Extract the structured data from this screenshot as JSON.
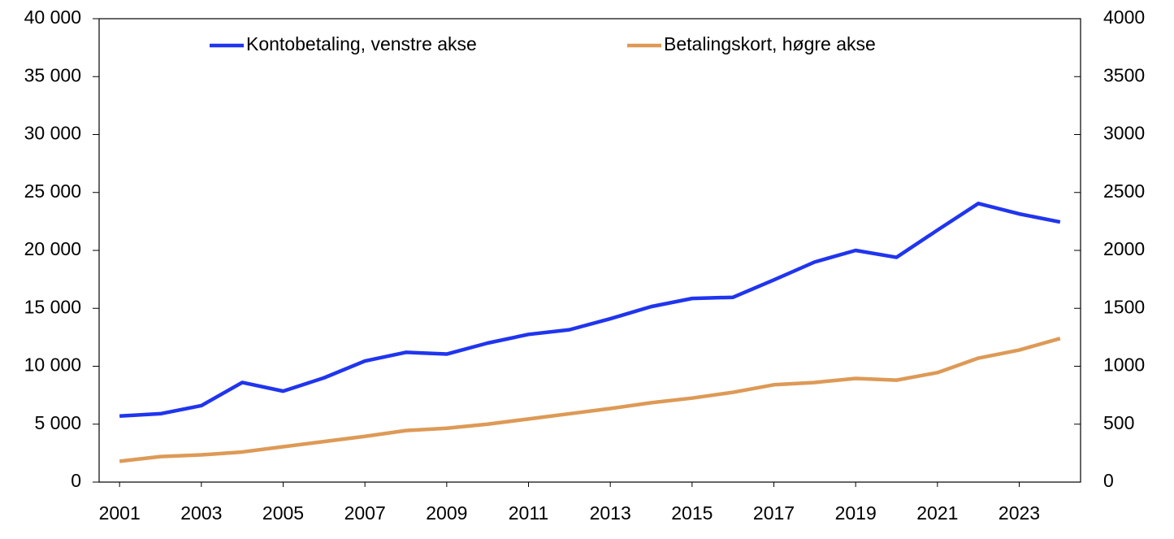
{
  "chart_data": {
    "type": "line",
    "x": [
      2001,
      2002,
      2003,
      2004,
      2005,
      2006,
      2007,
      2008,
      2009,
      2010,
      2011,
      2012,
      2013,
      2014,
      2015,
      2016,
      2017,
      2018,
      2019,
      2020,
      2021,
      2022,
      2023,
      2024
    ],
    "xlim": [
      2000.5,
      2024.5
    ],
    "xticks": [
      2001,
      2003,
      2005,
      2007,
      2009,
      2011,
      2013,
      2015,
      2017,
      2019,
      2021,
      2023
    ],
    "ylim": [
      0,
      40000
    ],
    "yticks": [
      0,
      {
        "value": 5000,
        "label": "5 000"
      },
      {
        "value": 10000,
        "label": "10 000"
      },
      {
        "value": 15000,
        "label": "15 000"
      },
      {
        "value": 20000,
        "label": "20 000"
      },
      {
        "value": 25000,
        "label": "25 000"
      },
      {
        "value": 30000,
        "label": "30 000"
      },
      {
        "value": 35000,
        "label": "35 000"
      },
      {
        "value": 40000,
        "label": "40 000"
      }
    ],
    "y2lim": [
      0,
      4000
    ],
    "y2ticks": [
      0,
      500,
      1000,
      1500,
      2000,
      2500,
      3000,
      3500,
      4000
    ],
    "grid": false,
    "legend": "top",
    "series": [
      {
        "name": "Kontobetaling, venstre akse",
        "color": "#2035ee",
        "values": [
          5700,
          5900,
          6600,
          8600,
          7850,
          9000,
          10450,
          11200,
          11050,
          12000,
          12750,
          13150,
          14100,
          15150,
          15850,
          15950,
          17450,
          19000,
          20000,
          19400,
          21750,
          24050,
          23150,
          22450
        ]
      },
      {
        "name": "Betalingskort, høgre akse",
        "color": "#dd9a56",
        "axis": "y2",
        "values": [
          180,
          220,
          235,
          260,
          305,
          350,
          395,
          445,
          465,
          500,
          545,
          590,
          635,
          685,
          725,
          775,
          840,
          860,
          895,
          880,
          945,
          1070,
          1140,
          1240
        ]
      }
    ]
  }
}
